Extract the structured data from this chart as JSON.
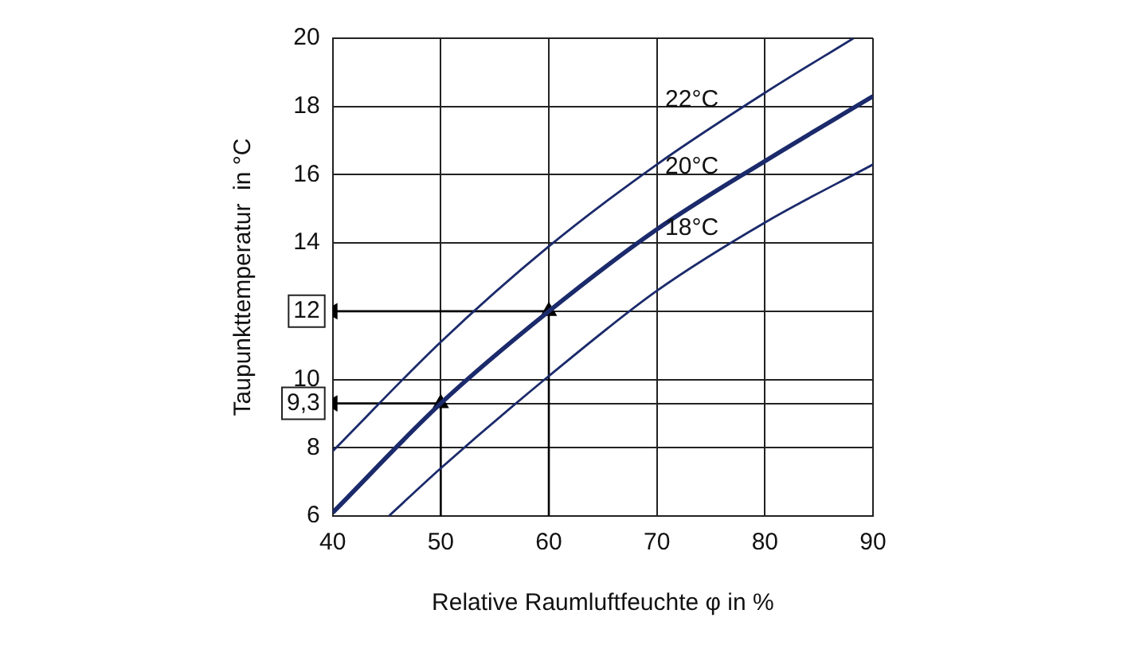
{
  "chart_data": {
    "type": "line",
    "xlabel": "Relative Raumluftfeuchte φ in %",
    "ylabel": "Taupunkttemperatur  in °C",
    "xlim": [
      40,
      90
    ],
    "xticks": [
      40,
      50,
      60,
      70,
      80,
      90
    ],
    "ylim": [
      6,
      20
    ],
    "yticks": [
      6,
      8,
      {
        "value": 9.3,
        "label": "9,3"
      },
      10,
      {
        "value": 12,
        "label": "12"
      },
      14,
      16,
      18,
      20
    ],
    "grid": true,
    "legend": false,
    "marker": "none",
    "line_style": "solid",
    "series": [
      {
        "name": "22°C",
        "color": "#1b2a6b",
        "x": [
          40,
          50,
          60,
          70,
          80,
          88.2
        ],
        "values": [
          7.9,
          11.1,
          13.9,
          16.3,
          18.4,
          20
        ]
      },
      {
        "name": "20°C",
        "color": "#1b2a6b",
        "x": [
          40,
          50,
          60,
          70,
          80,
          90
        ],
        "values": [
          6.1,
          9.3,
          12,
          14.4,
          16.4,
          18.3
        ]
      },
      {
        "name": "18°C",
        "color": "#1b2a6b",
        "x": [
          45.2,
          50,
          60,
          70,
          80,
          90
        ],
        "values": [
          6,
          7.4,
          10.1,
          12.6,
          14.6,
          16.3
        ]
      },
      {
        "color": "#000000",
        "marker": "triangle",
        "x": [
          50,
          50
        ],
        "values": [
          6,
          9.3
        ]
      },
      {
        "color": "#000000",
        "marker": "triangle",
        "x": [
          50,
          40
        ],
        "values": [
          9.3,
          9.3
        ]
      },
      {
        "color": "#000000",
        "marker": "triangle",
        "x": [
          60,
          60
        ],
        "values": [
          6,
          12
        ]
      },
      {
        "color": "#000000",
        "marker": "triangle",
        "x": [
          60,
          40
        ],
        "values": [
          12,
          12
        ]
      }
    ]
  }
}
